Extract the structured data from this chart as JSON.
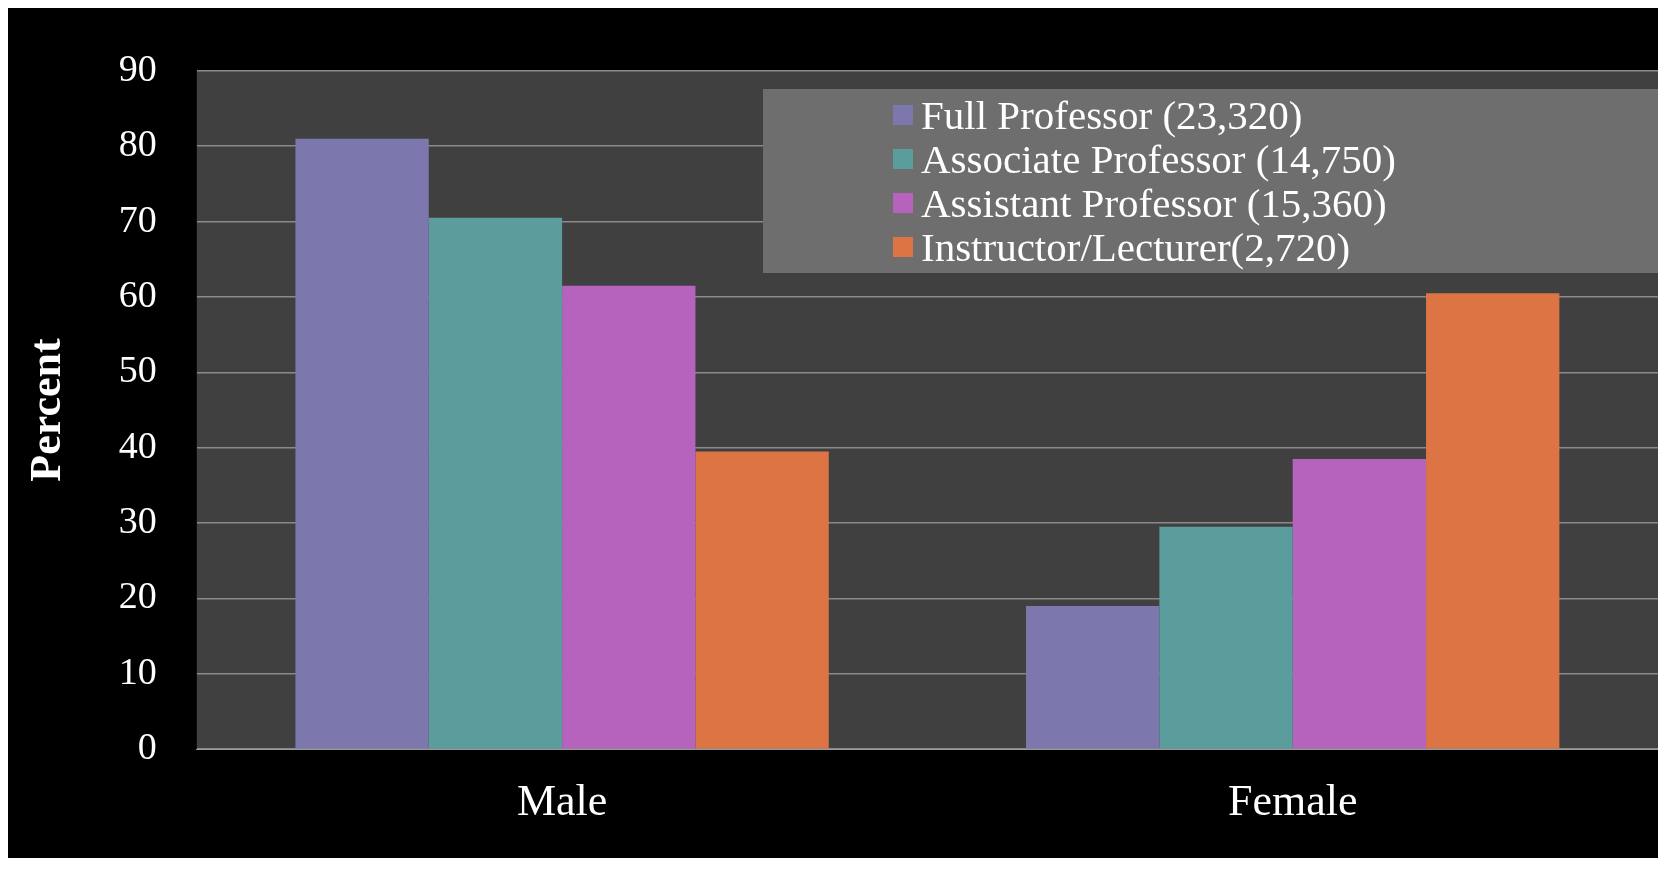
{
  "chart_data": {
    "type": "bar",
    "ylabel": "Percent",
    "categories": [
      "Male",
      "Female"
    ],
    "series": [
      {
        "name": "Full Professor (23,320)",
        "color": "#7c78ae",
        "values": [
          81,
          19
        ]
      },
      {
        "name": "Associate Professor (14,750)",
        "color": "#5b9c9c",
        "values": [
          70.5,
          29.5
        ]
      },
      {
        "name": "Assistant Professor (15,360)",
        "color": "#b563bd",
        "values": [
          61.5,
          38.5
        ]
      },
      {
        "name": "Instructor/Lecturer(2,720)",
        "color": "#dc7444",
        "values": [
          39.5,
          60.5
        ]
      }
    ],
    "ylim": [
      0,
      90
    ],
    "yticks": [
      0,
      10,
      20,
      30,
      40,
      50,
      60,
      70,
      80,
      90
    ],
    "grid": "y",
    "legend": "top right"
  }
}
